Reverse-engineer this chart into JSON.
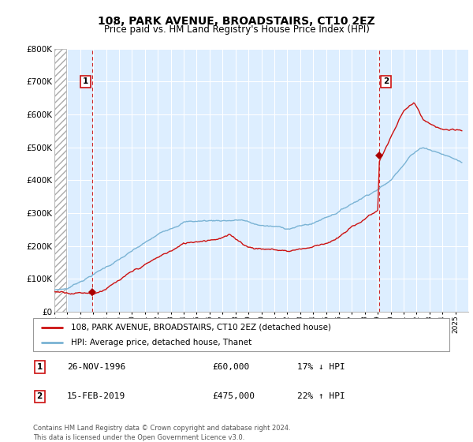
{
  "title": "108, PARK AVENUE, BROADSTAIRS, CT10 2EZ",
  "subtitle": "Price paid vs. HM Land Registry's House Price Index (HPI)",
  "ylim": [
    0,
    800000
  ],
  "yticks": [
    0,
    100000,
    200000,
    300000,
    400000,
    500000,
    600000,
    700000,
    800000
  ],
  "ytick_labels": [
    "£0",
    "£100K",
    "£200K",
    "£300K",
    "£400K",
    "£500K",
    "£600K",
    "£700K",
    "£800K"
  ],
  "hpi_color": "#7ab3d4",
  "price_color": "#cc1111",
  "marker_color": "#aa0000",
  "annotation_box_color": "#cc1111",
  "plot_bg_color": "#ddeeff",
  "purchase1_x": 1996.9,
  "purchase1_y": 60000,
  "purchase2_x": 2019.12,
  "purchase2_y": 475000,
  "legend_line1": "108, PARK AVENUE, BROADSTAIRS, CT10 2EZ (detached house)",
  "legend_line2": "HPI: Average price, detached house, Thanet",
  "footer": "Contains HM Land Registry data © Crown copyright and database right 2024.\nThis data is licensed under the Open Government Licence v3.0.",
  "xmin": 1994,
  "xmax": 2026
}
